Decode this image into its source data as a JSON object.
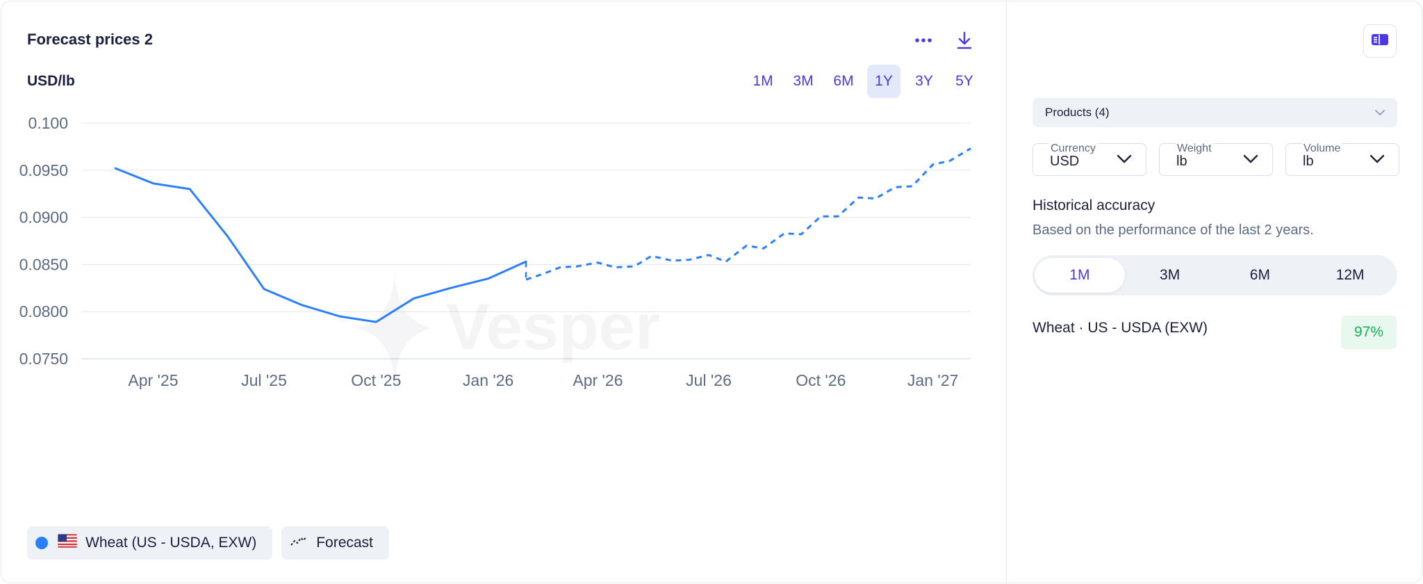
{
  "header": {
    "title": "Forecast prices 2",
    "unit": "USD/lb",
    "ranges": [
      {
        "label": "1M",
        "active": false
      },
      {
        "label": "3M",
        "active": false
      },
      {
        "label": "6M",
        "active": false
      },
      {
        "label": "1Y",
        "active": true
      },
      {
        "label": "3Y",
        "active": false
      },
      {
        "label": "5Y",
        "active": false
      }
    ],
    "icons": {
      "more": "more-dots-icon",
      "download": "download-icon"
    }
  },
  "chart_data": {
    "type": "line",
    "ylabel": "USD/lb",
    "ylim": [
      0.075,
      0.1
    ],
    "yticks": [
      "0.100",
      "0.0950",
      "0.0900",
      "0.0850",
      "0.0800",
      "0.0750"
    ],
    "xticks": [
      "Apr '25",
      "Jul '25",
      "Oct '25",
      "Jan '26",
      "Apr '26",
      "Jul '26",
      "Oct '26",
      "Jan '27"
    ],
    "grid": true,
    "watermark": "Vesper",
    "series": [
      {
        "name": "Wheat (US - USDA, EXW)",
        "style": "solid",
        "color": "#2a7fff",
        "points": [
          [
            "2025-03-01",
            0.0952
          ],
          [
            "2025-04-01",
            0.0936
          ],
          [
            "2025-05-01",
            0.093
          ],
          [
            "2025-06-01",
            0.088
          ],
          [
            "2025-07-01",
            0.0824
          ],
          [
            "2025-08-01",
            0.0807
          ],
          [
            "2025-09-01",
            0.0795
          ],
          [
            "2025-10-01",
            0.0789
          ],
          [
            "2025-11-01",
            0.0814
          ],
          [
            "2025-12-01",
            0.0825
          ],
          [
            "2026-01-01",
            0.0835
          ],
          [
            "2026-02-01",
            0.0853
          ]
        ]
      },
      {
        "name": "Forecast",
        "style": "dashed",
        "color": "#2a7fff",
        "points": [
          [
            "2026-02-01",
            0.0834
          ],
          [
            "2026-02-15",
            0.084
          ],
          [
            "2026-03-01",
            0.0847
          ],
          [
            "2026-03-15",
            0.0848
          ],
          [
            "2026-04-01",
            0.0852
          ],
          [
            "2026-04-15",
            0.0847
          ],
          [
            "2026-05-01",
            0.0848
          ],
          [
            "2026-05-15",
            0.0859
          ],
          [
            "2026-06-01",
            0.0854
          ],
          [
            "2026-06-15",
            0.0855
          ],
          [
            "2026-07-01",
            0.086
          ],
          [
            "2026-07-15",
            0.0853
          ],
          [
            "2026-08-01",
            0.087
          ],
          [
            "2026-08-15",
            0.0867
          ],
          [
            "2026-09-01",
            0.0883
          ],
          [
            "2026-09-15",
            0.0882
          ],
          [
            "2026-10-01",
            0.0901
          ],
          [
            "2026-10-15",
            0.0901
          ],
          [
            "2026-11-01",
            0.0921
          ],
          [
            "2026-11-15",
            0.092
          ],
          [
            "2026-12-01",
            0.0932
          ],
          [
            "2026-12-15",
            0.0933
          ],
          [
            "2027-01-01",
            0.0956
          ],
          [
            "2027-01-15",
            0.096
          ],
          [
            "2027-02-01",
            0.0973
          ]
        ]
      }
    ]
  },
  "legend": {
    "series_label": "Wheat (US - USDA, EXW)",
    "series_color": "#2a7fff",
    "flag_icon": "us-flag-icon",
    "forecast_label": "Forecast"
  },
  "sidebar": {
    "panel_icon": "panel-toggle-icon",
    "products_label": "Products (4)",
    "selects": [
      {
        "label": "Currency",
        "value": "USD"
      },
      {
        "label": "Weight",
        "value": "lb"
      },
      {
        "label": "Volume",
        "value": "lb"
      }
    ],
    "accuracy_title": "Historical accuracy",
    "accuracy_subtitle": "Based on the performance of the last 2 years.",
    "periods": [
      {
        "label": "1M",
        "active": true
      },
      {
        "label": "3M",
        "active": false
      },
      {
        "label": "6M",
        "active": false
      },
      {
        "label": "12M",
        "active": false
      }
    ],
    "accuracy_item": {
      "name": "Wheat · US - USDA (EXW)",
      "value": "97%"
    }
  },
  "colors": {
    "accent": "#4a38e8",
    "line": "#2a7fff",
    "success": "#18b055"
  }
}
